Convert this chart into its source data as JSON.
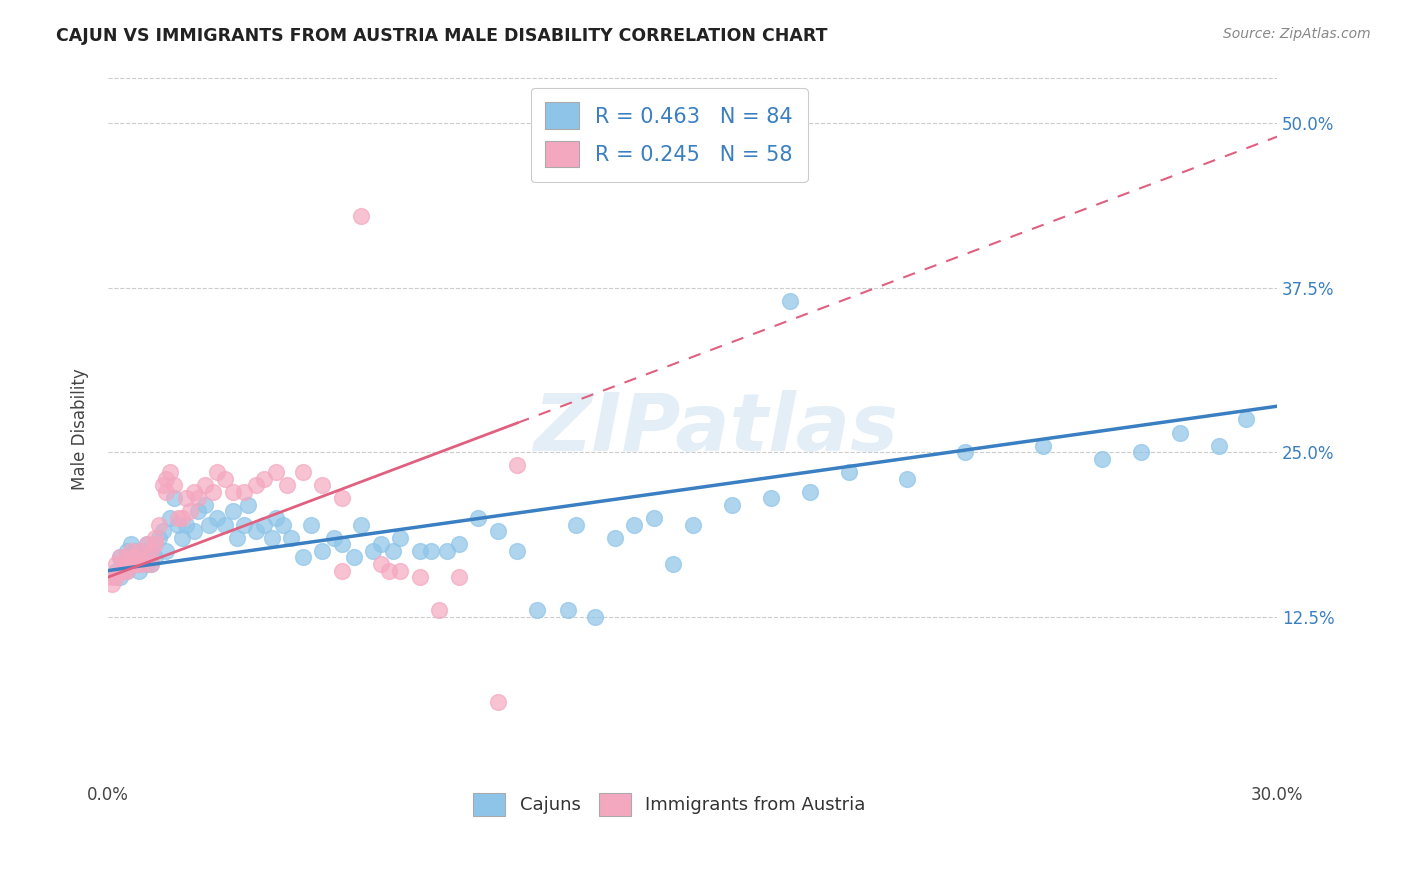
{
  "title": "CAJUN VS IMMIGRANTS FROM AUSTRIA MALE DISABILITY CORRELATION CHART",
  "source": "Source: ZipAtlas.com",
  "ylabel": "Male Disability",
  "ytick_labels": [
    "12.5%",
    "25.0%",
    "37.5%",
    "50.0%"
  ],
  "ytick_values": [
    0.125,
    0.25,
    0.375,
    0.5
  ],
  "xmin": 0.0,
  "xmax": 0.3,
  "ymin": 0.0,
  "ymax": 0.535,
  "cajun_color": "#8ec4e8",
  "austria_color": "#f4a8c0",
  "cajun_line_color": "#3a7fc1",
  "austria_line_color": "#e06080",
  "cajun_R": 0.463,
  "cajun_N": 84,
  "austria_R": 0.245,
  "austria_N": 58,
  "legend_label_cajun": "Cajuns",
  "legend_label_austria": "Immigrants from Austria",
  "watermark": "ZIPatlas",
  "cajun_x": [
    0.002,
    0.003,
    0.003,
    0.004,
    0.005,
    0.005,
    0.006,
    0.006,
    0.007,
    0.007,
    0.008,
    0.008,
    0.009,
    0.009,
    0.01,
    0.01,
    0.01,
    0.011,
    0.011,
    0.012,
    0.013,
    0.014,
    0.015,
    0.016,
    0.017,
    0.018,
    0.019,
    0.02,
    0.022,
    0.023,
    0.025,
    0.026,
    0.028,
    0.03,
    0.032,
    0.033,
    0.035,
    0.036,
    0.038,
    0.04,
    0.042,
    0.043,
    0.045,
    0.047,
    0.05,
    0.052,
    0.055,
    0.058,
    0.06,
    0.063,
    0.065,
    0.068,
    0.07,
    0.073,
    0.075,
    0.08,
    0.083,
    0.087,
    0.09,
    0.095,
    0.1,
    0.105,
    0.11,
    0.118,
    0.125,
    0.13,
    0.14,
    0.15,
    0.16,
    0.17,
    0.18,
    0.19,
    0.205,
    0.22,
    0.24,
    0.255,
    0.265,
    0.275,
    0.285,
    0.292,
    0.12,
    0.135,
    0.145,
    0.175
  ],
  "cajun_y": [
    0.16,
    0.155,
    0.17,
    0.165,
    0.175,
    0.16,
    0.165,
    0.18,
    0.17,
    0.175,
    0.16,
    0.165,
    0.17,
    0.175,
    0.165,
    0.18,
    0.17,
    0.175,
    0.165,
    0.17,
    0.185,
    0.19,
    0.175,
    0.2,
    0.215,
    0.195,
    0.185,
    0.195,
    0.19,
    0.205,
    0.21,
    0.195,
    0.2,
    0.195,
    0.205,
    0.185,
    0.195,
    0.21,
    0.19,
    0.195,
    0.185,
    0.2,
    0.195,
    0.185,
    0.17,
    0.195,
    0.175,
    0.185,
    0.18,
    0.17,
    0.195,
    0.175,
    0.18,
    0.175,
    0.185,
    0.175,
    0.175,
    0.175,
    0.18,
    0.2,
    0.19,
    0.175,
    0.13,
    0.13,
    0.125,
    0.185,
    0.2,
    0.195,
    0.21,
    0.215,
    0.22,
    0.235,
    0.23,
    0.25,
    0.255,
    0.245,
    0.25,
    0.265,
    0.255,
    0.275,
    0.195,
    0.195,
    0.165,
    0.365
  ],
  "austria_x": [
    0.001,
    0.001,
    0.002,
    0.002,
    0.003,
    0.003,
    0.004,
    0.004,
    0.005,
    0.005,
    0.006,
    0.006,
    0.007,
    0.007,
    0.008,
    0.008,
    0.009,
    0.01,
    0.01,
    0.011,
    0.011,
    0.012,
    0.012,
    0.013,
    0.014,
    0.015,
    0.015,
    0.016,
    0.017,
    0.018,
    0.019,
    0.02,
    0.021,
    0.022,
    0.023,
    0.025,
    0.027,
    0.028,
    0.03,
    0.032,
    0.035,
    0.038,
    0.04,
    0.043,
    0.046,
    0.05,
    0.055,
    0.06,
    0.065,
    0.07,
    0.075,
    0.08,
    0.09,
    0.1,
    0.105,
    0.06,
    0.072,
    0.085
  ],
  "austria_y": [
    0.15,
    0.155,
    0.155,
    0.165,
    0.16,
    0.17,
    0.16,
    0.165,
    0.16,
    0.17,
    0.165,
    0.175,
    0.165,
    0.17,
    0.165,
    0.175,
    0.165,
    0.17,
    0.18,
    0.165,
    0.175,
    0.18,
    0.185,
    0.195,
    0.225,
    0.23,
    0.22,
    0.235,
    0.225,
    0.2,
    0.2,
    0.215,
    0.205,
    0.22,
    0.215,
    0.225,
    0.22,
    0.235,
    0.23,
    0.22,
    0.22,
    0.225,
    0.23,
    0.235,
    0.225,
    0.235,
    0.225,
    0.215,
    0.43,
    0.165,
    0.16,
    0.155,
    0.155,
    0.06,
    0.24,
    0.16,
    0.16,
    0.13
  ],
  "cajun_trend_x0": 0.0,
  "cajun_trend_y0": 0.16,
  "cajun_trend_x1": 0.3,
  "cajun_trend_y1": 0.285,
  "austria_trend_x0": 0.0,
  "austria_trend_y0": 0.155,
  "austria_trend_x1": 0.3,
  "austria_trend_y1": 0.49
}
